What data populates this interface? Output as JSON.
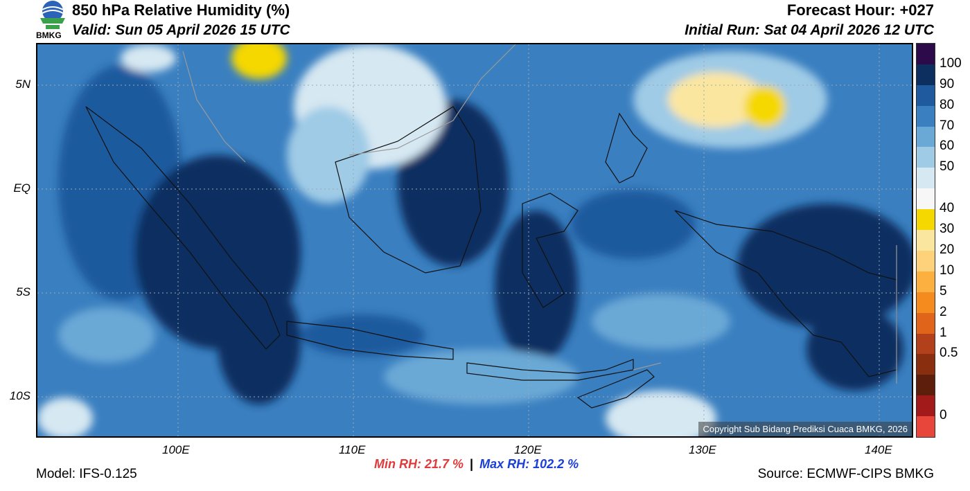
{
  "header": {
    "title": "850 hPa Relative Humidity (%)",
    "valid": "Valid: Sun 05 April 2026 15 UTC",
    "forecast_hour": "Forecast Hour: +027",
    "initial_run": "Initial Run: Sat 04 April 2026 12 UTC",
    "logo_text": "BMKG"
  },
  "footer": {
    "model": "Model: IFS-0.125",
    "min_rh": "Min RH:  21.7 %",
    "separator": "|",
    "max_rh": "Max RH: 102.2 %",
    "source": "Source: ECMWF-CIPS BMKG",
    "copyright": "Copyright Sub Bidang Prediksi Cuaca BMKG, 2026"
  },
  "axes": {
    "lat_labels": [
      "5N",
      "EQ",
      "5S",
      "10S"
    ],
    "lon_labels": [
      "100E",
      "110E",
      "120E",
      "130E",
      "140E"
    ]
  },
  "colorbar": {
    "labels": [
      "100",
      "90",
      "80",
      "70",
      "60",
      "50",
      "40",
      "30",
      "20",
      "10",
      "5",
      "2",
      "1",
      "0.5",
      "0"
    ],
    "colors": [
      "#2d0a4a",
      "#0d2f60",
      "#1f5a9e",
      "#3a7fc0",
      "#6aa8d6",
      "#9fcbe6",
      "#d6e8f2",
      "#f7f7f7",
      "#f5d800",
      "#fbe6a0",
      "#fdd27a",
      "#fbb040",
      "#f58a1e",
      "#e0641a",
      "#b2401a",
      "#8a2e10",
      "#5e1e0c",
      "#a31a1a",
      "#e8463a"
    ]
  },
  "colors": {
    "min_rh": "#e03a3a",
    "max_rh": "#1a3fd6"
  }
}
